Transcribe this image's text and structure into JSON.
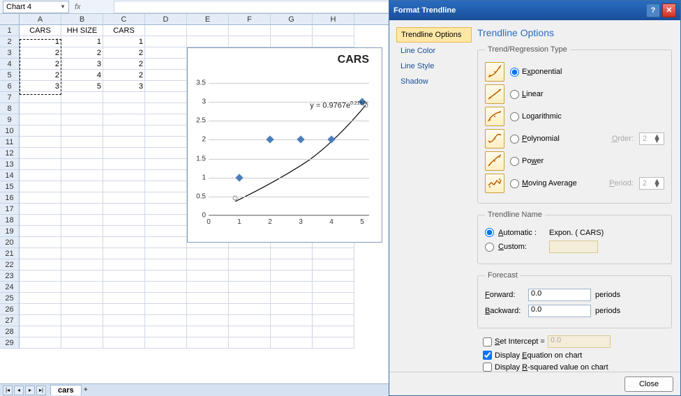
{
  "formula_bar": {
    "name_box": "Chart 4",
    "fx": "fx",
    "formula": ""
  },
  "columns": [
    "A",
    "B",
    "C",
    "D",
    "E",
    "F",
    "G",
    "H"
  ],
  "row_count": 29,
  "data": {
    "headers": [
      "CARS",
      "HH SIZE",
      "CARS"
    ],
    "rows": [
      [
        "1",
        "1",
        "1"
      ],
      [
        "2",
        "2",
        "2"
      ],
      [
        "2",
        "3",
        "2"
      ],
      [
        "2",
        "4",
        "2"
      ],
      [
        "3",
        "5",
        "3"
      ]
    ]
  },
  "chart": {
    "title": "CARS",
    "equation_pre": "y = 0.9767e",
    "equation_sup": "0.2197x",
    "y_ticks": [
      "0",
      "0.5",
      "1",
      "1.5",
      "2",
      "2.5",
      "3",
      "3.5"
    ],
    "x_ticks": [
      "0",
      "1",
      "2",
      "3",
      "4",
      "5"
    ],
    "points": [
      [
        1,
        1
      ],
      [
        2,
        2
      ],
      [
        3,
        2
      ],
      [
        4,
        2
      ],
      [
        5,
        3
      ]
    ]
  },
  "sheet_tab": "cars",
  "dialog": {
    "title": "Format Trendline",
    "nav": [
      "Trendline Options",
      "Line Color",
      "Line Style",
      "Shadow"
    ],
    "heading": "Trendline Options",
    "group_type": "Trend/Regression Type",
    "types": [
      {
        "label": "Exponential",
        "u": "x",
        "checked": true
      },
      {
        "label": "Linear",
        "u": "L",
        "checked": false
      },
      {
        "label": "Logarithmic",
        "u": "O",
        "checked": false
      },
      {
        "label": "Polynomial",
        "u": "P",
        "checked": false,
        "extra": "Order:",
        "extra_val": "2"
      },
      {
        "label": "Power",
        "u": "w",
        "checked": false
      },
      {
        "label": "Moving Average",
        "u": "M",
        "checked": false,
        "extra": "Period:",
        "extra_val": "2"
      }
    ],
    "group_name": "Trendline Name",
    "name_auto": "Automatic :",
    "name_auto_val": "Expon. (   CARS)",
    "name_custom": "Custom:",
    "group_forecast": "Forecast",
    "forward": "Forward:",
    "forward_val": "0.0",
    "backward": "Backward:",
    "backward_val": "0.0",
    "periods": "periods",
    "set_intercept": "Set Intercept =",
    "set_intercept_val": "0.0",
    "disp_eq": "Display Equation on chart",
    "disp_r2": "Display R-squared value on chart",
    "close": "Close"
  }
}
